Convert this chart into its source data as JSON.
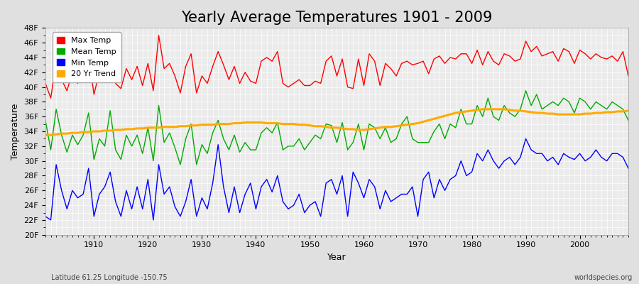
{
  "title": "Yearly Average Temperatures 1901 - 2009",
  "xlabel": "Year",
  "ylabel": "Temperature",
  "subtitle_left": "Latitude 61.25 Longitude -150.75",
  "subtitle_right": "worldspecies.org",
  "years": [
    1901,
    1902,
    1903,
    1904,
    1905,
    1906,
    1907,
    1908,
    1909,
    1910,
    1911,
    1912,
    1913,
    1914,
    1915,
    1916,
    1917,
    1918,
    1919,
    1920,
    1921,
    1922,
    1923,
    1924,
    1925,
    1926,
    1927,
    1928,
    1929,
    1930,
    1931,
    1932,
    1933,
    1934,
    1935,
    1936,
    1937,
    1938,
    1939,
    1940,
    1941,
    1942,
    1943,
    1944,
    1945,
    1946,
    1947,
    1948,
    1949,
    1950,
    1951,
    1952,
    1953,
    1954,
    1955,
    1956,
    1957,
    1958,
    1959,
    1960,
    1961,
    1962,
    1963,
    1964,
    1965,
    1966,
    1967,
    1968,
    1969,
    1970,
    1971,
    1972,
    1973,
    1974,
    1975,
    1976,
    1977,
    1978,
    1979,
    1980,
    1981,
    1982,
    1983,
    1984,
    1985,
    1986,
    1987,
    1988,
    1989,
    1990,
    1991,
    1992,
    1993,
    1994,
    1995,
    1996,
    1997,
    1998,
    1999,
    2000,
    2001,
    2002,
    2003,
    2004,
    2005,
    2006,
    2007,
    2008,
    2009
  ],
  "max_temp": [
    40.5,
    38.5,
    43.5,
    41.0,
    39.5,
    42.0,
    40.5,
    41.5,
    44.5,
    39.0,
    42.0,
    41.0,
    44.8,
    40.5,
    39.8,
    42.5,
    41.0,
    42.8,
    40.2,
    43.2,
    39.5,
    47.0,
    42.5,
    43.2,
    41.5,
    39.2,
    42.8,
    44.5,
    39.2,
    41.5,
    40.5,
    42.8,
    44.8,
    43.0,
    41.0,
    42.8,
    40.5,
    42.0,
    40.8,
    40.5,
    43.5,
    44.0,
    43.5,
    44.8,
    40.5,
    40.0,
    40.5,
    41.0,
    40.2,
    40.2,
    40.8,
    40.5,
    43.5,
    44.2,
    41.5,
    43.8,
    40.0,
    39.8,
    43.8,
    40.2,
    44.5,
    43.5,
    40.2,
    43.2,
    42.5,
    41.5,
    43.2,
    43.5,
    43.0,
    43.2,
    43.5,
    41.8,
    43.8,
    44.2,
    43.2,
    44.0,
    43.8,
    44.5,
    44.5,
    43.2,
    45.0,
    43.0,
    44.8,
    43.5,
    43.0,
    44.5,
    44.2,
    43.5,
    43.8,
    46.2,
    44.8,
    45.5,
    44.2,
    44.5,
    44.8,
    43.5,
    45.2,
    44.8,
    43.2,
    45.0,
    44.5,
    43.8,
    44.5,
    44.0,
    43.8,
    44.2,
    43.5,
    44.8,
    41.5
  ],
  "mean_temp": [
    35.5,
    31.5,
    37.0,
    33.5,
    31.2,
    33.5,
    32.2,
    33.5,
    36.5,
    30.2,
    33.0,
    32.0,
    36.8,
    31.5,
    30.2,
    33.5,
    32.0,
    33.5,
    31.0,
    34.5,
    30.0,
    37.5,
    32.5,
    33.8,
    31.8,
    29.5,
    33.0,
    35.0,
    29.5,
    32.2,
    31.0,
    33.8,
    35.5,
    33.0,
    31.5,
    33.5,
    31.2,
    32.5,
    31.5,
    31.5,
    33.8,
    34.5,
    33.8,
    35.2,
    31.5,
    32.0,
    32.0,
    33.0,
    31.5,
    32.5,
    33.5,
    33.0,
    35.0,
    34.8,
    32.5,
    35.2,
    31.5,
    32.5,
    35.0,
    31.5,
    35.0,
    34.5,
    33.0,
    34.5,
    32.5,
    33.0,
    35.0,
    36.0,
    33.0,
    32.5,
    32.5,
    32.5,
    34.0,
    35.0,
    33.0,
    35.0,
    34.5,
    37.0,
    35.0,
    35.0,
    37.5,
    36.0,
    38.5,
    36.0,
    35.5,
    37.5,
    36.5,
    36.0,
    37.0,
    39.5,
    37.5,
    39.0,
    37.0,
    37.5,
    38.0,
    37.5,
    38.5,
    38.0,
    36.5,
    38.5,
    38.0,
    37.0,
    38.0,
    37.5,
    37.0,
    38.0,
    37.5,
    37.0,
    35.5
  ],
  "min_temp": [
    22.5,
    22.0,
    29.5,
    26.0,
    23.5,
    26.0,
    25.0,
    25.5,
    29.0,
    22.5,
    25.5,
    26.5,
    28.5,
    24.5,
    22.5,
    26.0,
    23.5,
    26.5,
    23.5,
    27.5,
    22.0,
    29.5,
    25.5,
    26.5,
    23.8,
    22.5,
    24.5,
    27.5,
    22.5,
    25.0,
    23.5,
    27.0,
    32.2,
    26.5,
    23.0,
    26.5,
    23.0,
    25.5,
    27.0,
    23.5,
    26.5,
    27.5,
    25.8,
    28.0,
    24.5,
    23.5,
    24.0,
    25.5,
    23.0,
    24.0,
    24.5,
    22.5,
    27.0,
    27.5,
    25.5,
    28.0,
    22.5,
    28.5,
    27.0,
    25.0,
    27.5,
    26.5,
    23.5,
    26.0,
    24.5,
    25.0,
    25.5,
    25.5,
    26.5,
    22.5,
    27.5,
    28.5,
    25.0,
    27.5,
    26.0,
    27.5,
    28.0,
    30.0,
    28.0,
    28.5,
    31.0,
    30.0,
    31.5,
    30.0,
    29.0,
    30.0,
    30.5,
    29.5,
    30.5,
    33.0,
    31.5,
    31.0,
    31.0,
    30.0,
    30.5,
    29.5,
    31.0,
    30.5,
    30.2,
    31.0,
    30.0,
    30.5,
    31.5,
    30.5,
    30.0,
    31.0,
    31.0,
    30.5,
    29.0
  ],
  "trend_temp": [
    33.5,
    33.5,
    33.6,
    33.7,
    33.7,
    33.8,
    33.8,
    33.9,
    33.9,
    34.0,
    34.0,
    34.1,
    34.1,
    34.2,
    34.2,
    34.3,
    34.3,
    34.4,
    34.4,
    34.5,
    34.5,
    34.5,
    34.6,
    34.6,
    34.6,
    34.7,
    34.7,
    34.8,
    34.8,
    34.9,
    34.9,
    34.9,
    35.0,
    35.0,
    35.0,
    35.1,
    35.1,
    35.2,
    35.2,
    35.2,
    35.2,
    35.1,
    35.1,
    35.1,
    35.0,
    35.0,
    35.0,
    34.9,
    34.9,
    34.8,
    34.7,
    34.7,
    34.6,
    34.5,
    34.5,
    34.4,
    34.3,
    34.3,
    34.2,
    34.2,
    34.3,
    34.4,
    34.5,
    34.6,
    34.6,
    34.7,
    34.8,
    34.9,
    35.0,
    35.1,
    35.3,
    35.5,
    35.7,
    35.9,
    36.1,
    36.3,
    36.5,
    36.6,
    36.7,
    36.8,
    36.9,
    37.0,
    37.0,
    37.0,
    37.0,
    37.0,
    36.9,
    36.8,
    36.8,
    36.7,
    36.6,
    36.5,
    36.5,
    36.4,
    36.4,
    36.3,
    36.3,
    36.3,
    36.3,
    36.3,
    36.4,
    36.4,
    36.5,
    36.5,
    36.6,
    36.6,
    36.7,
    36.7,
    36.8
  ],
  "max_color": "#ff0000",
  "mean_color": "#00aa00",
  "min_color": "#0000ff",
  "trend_color": "#ffaa00",
  "bg_color": "#e0e0e0",
  "plot_bg_color": "#ebebeb",
  "grid_color": "#ffffff",
  "ylim": [
    20,
    48
  ],
  "yticks": [
    20,
    22,
    24,
    26,
    28,
    30,
    32,
    34,
    36,
    38,
    40,
    42,
    44,
    46,
    48
  ],
  "ytick_labels": [
    "20F",
    "22F",
    "24F",
    "26F",
    "28F",
    "30F",
    "32F",
    "34F",
    "36F",
    "38F",
    "40F",
    "42F",
    "44F",
    "46F",
    "48F"
  ],
  "xlim": [
    1901,
    2009
  ],
  "xticks": [
    1910,
    1920,
    1930,
    1940,
    1950,
    1960,
    1970,
    1980,
    1990,
    2000
  ],
  "title_fontsize": 15,
  "label_fontsize": 9,
  "tick_fontsize": 8,
  "line_width": 1.0
}
